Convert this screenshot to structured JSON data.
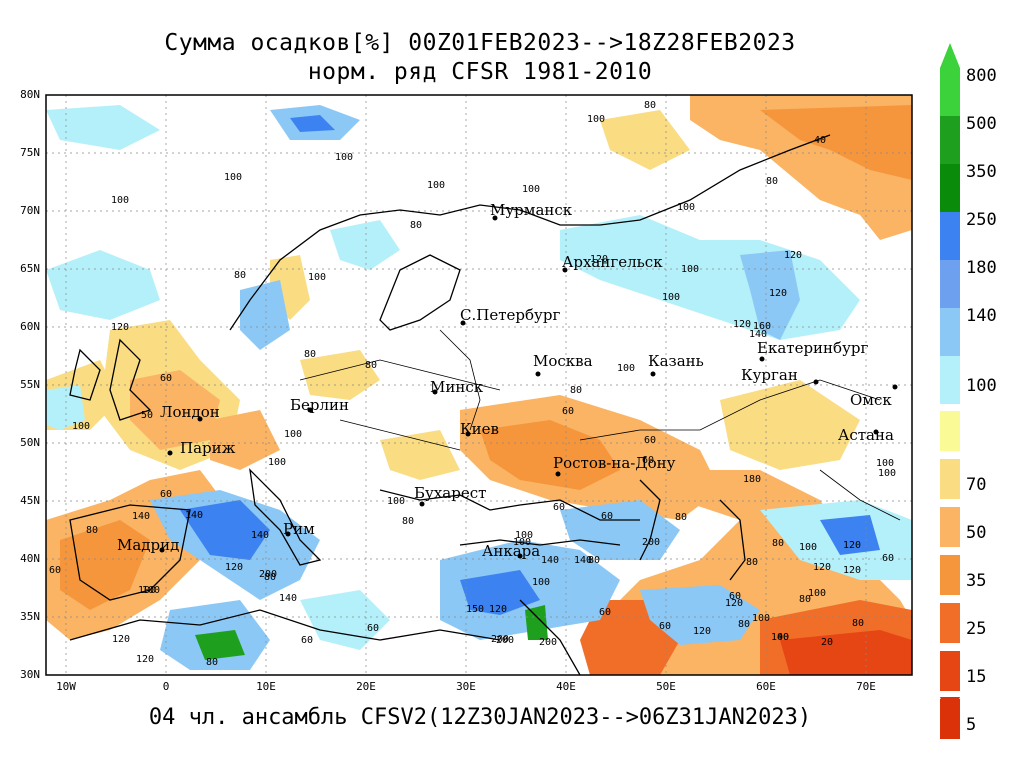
{
  "title": {
    "line1": "Сумма осадков[%] 00Z01FEB2023-->18Z28FEB2023",
    "line2": "норм. ряд CFSR 1981-2010"
  },
  "footer": "04 чл. ансамбль CFSV2(12Z30JAN2023-->06Z31JAN2023)",
  "lat_labels": [
    "80N",
    "75N",
    "70N",
    "65N",
    "60N",
    "55N",
    "50N",
    "45N",
    "40N",
    "35N",
    "30N"
  ],
  "lon_labels": [
    "10W",
    "0",
    "10E",
    "20E",
    "30E",
    "40E",
    "50E",
    "60E",
    "70E"
  ],
  "cities": [
    {
      "name": "Мурманск"
    },
    {
      "name": "Архангельск"
    },
    {
      "name": "С.Петербург"
    },
    {
      "name": "Москва"
    },
    {
      "name": "Казань"
    },
    {
      "name": "Екатеринбург"
    },
    {
      "name": "Курган"
    },
    {
      "name": "Омск"
    },
    {
      "name": "Астана"
    },
    {
      "name": "Минск"
    },
    {
      "name": "Берлин"
    },
    {
      "name": "Лондон"
    },
    {
      "name": "Париж"
    },
    {
      "name": "Киев"
    },
    {
      "name": "Ростов-на-Дону"
    },
    {
      "name": "Бухарест"
    },
    {
      "name": "Рим"
    },
    {
      "name": "Мадрид"
    },
    {
      "name": "Анкара"
    }
  ],
  "contour_labels": [
    "80",
    "100",
    "40",
    "80",
    "100",
    "100",
    "100",
    "100",
    "100",
    "100",
    "80",
    "120",
    "100",
    "120",
    "120",
    "100",
    "140",
    "120",
    "160",
    "80",
    "100",
    "80",
    "60",
    "80",
    "100",
    "60",
    "80",
    "60",
    "60",
    "80",
    "100",
    "100",
    "100",
    "50",
    "100",
    "100",
    "60",
    "80",
    "100",
    "60",
    "80",
    "100",
    "80",
    "120",
    "60",
    "140",
    "140",
    "200",
    "60",
    "120",
    "200",
    "100",
    "140",
    "60",
    "120",
    "120",
    "80",
    "60",
    "150",
    "200",
    "140",
    "100",
    "80",
    "120",
    "60",
    "120",
    "80",
    "100",
    "120",
    "100",
    "80",
    "60",
    "60",
    "140",
    "180",
    "100",
    "120",
    "80",
    "60",
    "100",
    "200",
    "120",
    "100",
    "80",
    "20",
    "40",
    "120",
    "140",
    "80",
    "100",
    "200"
  ],
  "colorbar": {
    "upper": [
      {
        "label": "800",
        "color": "#3cd23c"
      },
      {
        "label": "500",
        "color": "#1ea01e"
      },
      {
        "label": "350",
        "color": "#0a8c0a"
      },
      {
        "label": "250",
        "color": "#3c82f0"
      },
      {
        "label": "180",
        "color": "#6ea0f0"
      },
      {
        "label": "140",
        "color": "#8cc8f5"
      },
      {
        "label": "",
        "color": "#b4f0fa"
      }
    ],
    "mid_label": "100",
    "lower": [
      {
        "label": "",
        "color": "#fafa96"
      },
      {
        "label": "70",
        "color": "#fadc82"
      },
      {
        "label": "50",
        "color": "#fab464"
      },
      {
        "label": "35",
        "color": "#f5963c"
      },
      {
        "label": "25",
        "color": "#f06e28"
      },
      {
        "label": "15",
        "color": "#e64614"
      },
      {
        "label": "5",
        "color": "#dc320a"
      }
    ]
  },
  "colors": {
    "wet_light": "#b4f0fa",
    "wet_mid": "#8cc8f5",
    "wet_dark": "#3c82f0",
    "green": "#1ea01e",
    "dry_light": "#fadc82",
    "dry_mid": "#fab464",
    "dry_dark": "#f5963c",
    "dry_red": "#e64614"
  }
}
